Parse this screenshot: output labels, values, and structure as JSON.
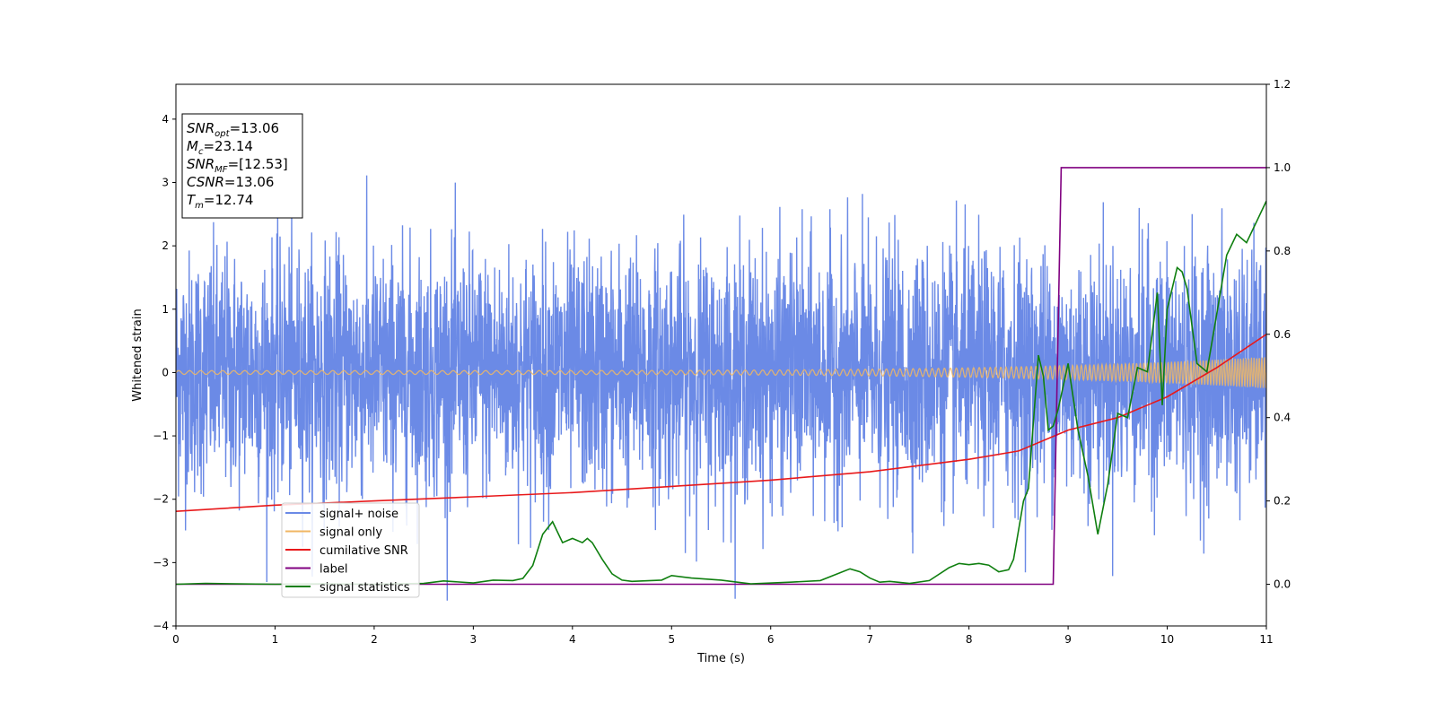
{
  "chart_data": {
    "type": "line",
    "title": "",
    "xlabel": "Time (s)",
    "ylabel": "Whitened strain",
    "y2label": "",
    "xlim": [
      0,
      11
    ],
    "ylim": [
      -4,
      4.55
    ],
    "y2lim": [
      -0.1,
      1.2
    ],
    "xticks": [
      0,
      1,
      2,
      3,
      4,
      5,
      6,
      7,
      8,
      9,
      10,
      11
    ],
    "yticks": [
      -4,
      -3,
      -2,
      -1,
      0,
      1,
      2,
      3,
      4
    ],
    "y2ticks": [
      0.0,
      0.2,
      0.4,
      0.6,
      0.8,
      1.0,
      1.2
    ],
    "xtick_labels": [
      "0",
      "1",
      "2",
      "3",
      "4",
      "5",
      "6",
      "7",
      "8",
      "9",
      "10",
      "11"
    ],
    "ytick_labels": [
      "−4",
      "−3",
      "−2",
      "−1",
      "0",
      "1",
      "2",
      "3",
      "4"
    ],
    "y2tick_labels": [
      "0.0",
      "0.2",
      "0.4",
      "0.6",
      "0.8",
      "1.0",
      "1.2"
    ],
    "grid": false,
    "legend_position": "lower-left",
    "series": [
      {
        "name": "signal+ noise",
        "axis": "left",
        "color": "#6b8ae6",
        "kind": "noise",
        "std": 0.95,
        "range": [
          -3.6,
          4.2
        ]
      },
      {
        "name": "signal only",
        "axis": "left",
        "color": "#f0b764",
        "kind": "chirp",
        "amplitude_start": 0.03,
        "amplitude_end": 0.25
      },
      {
        "name": "cumilative SNR",
        "axis": "right",
        "color": "#e8191b",
        "x": [
          0,
          1,
          2,
          3,
          4,
          5,
          6,
          7,
          8,
          8.5,
          9,
          9.5,
          10,
          10.5,
          11
        ],
        "y": [
          0.175,
          0.19,
          0.2,
          0.21,
          0.22,
          0.235,
          0.25,
          0.27,
          0.3,
          0.32,
          0.37,
          0.4,
          0.45,
          0.52,
          0.6
        ]
      },
      {
        "name": "label",
        "axis": "right",
        "color": "#800080",
        "x": [
          0,
          8.85,
          8.93,
          11
        ],
        "y": [
          0,
          0,
          1,
          1
        ]
      },
      {
        "name": "signal statistics",
        "axis": "right",
        "color": "#0f7f0f",
        "x": [
          0,
          0.3,
          1,
          1.5,
          2,
          2.5,
          2.7,
          3,
          3.2,
          3.4,
          3.5,
          3.6,
          3.7,
          3.8,
          3.9,
          4.0,
          4.1,
          4.15,
          4.2,
          4.3,
          4.4,
          4.5,
          4.6,
          4.9,
          5.0,
          5.2,
          5.5,
          5.8,
          6.2,
          6.5,
          6.8,
          6.9,
          7.0,
          7.1,
          7.2,
          7.4,
          7.6,
          7.8,
          7.9,
          8.0,
          8.1,
          8.2,
          8.3,
          8.4,
          8.45,
          8.5,
          8.55,
          8.6,
          8.7,
          8.75,
          8.8,
          8.85,
          8.9,
          9.0,
          9.1,
          9.2,
          9.3,
          9.4,
          9.5,
          9.6,
          9.7,
          9.8,
          9.9,
          9.95,
          10.0,
          10.1,
          10.15,
          10.2,
          10.3,
          10.4,
          10.5,
          10.6,
          10.7,
          10.8,
          10.9,
          11.0
        ],
        "y": [
          0,
          0.002,
          0,
          0.001,
          0,
          0.002,
          0.008,
          0.003,
          0.01,
          0.009,
          0.014,
          0.045,
          0.12,
          0.15,
          0.1,
          0.11,
          0.1,
          0.11,
          0.1,
          0.06,
          0.025,
          0.01,
          0.007,
          0.01,
          0.021,
          0.015,
          0.01,
          0.001,
          0.005,
          0.009,
          0.037,
          0.03,
          0.015,
          0.005,
          0.007,
          0.002,
          0.009,
          0.04,
          0.05,
          0.047,
          0.05,
          0.046,
          0.03,
          0.035,
          0.06,
          0.13,
          0.2,
          0.23,
          0.55,
          0.5,
          0.37,
          0.38,
          0.42,
          0.53,
          0.37,
          0.26,
          0.12,
          0.24,
          0.41,
          0.4,
          0.52,
          0.51,
          0.7,
          0.43,
          0.66,
          0.76,
          0.75,
          0.71,
          0.53,
          0.51,
          0.65,
          0.79,
          0.84,
          0.82,
          0.87,
          0.92
        ]
      }
    ],
    "annotation": [
      {
        "base": "SNR",
        "sub": "opt",
        "value": "=13.06"
      },
      {
        "base": "M",
        "sub": "c",
        "value": "=23.14"
      },
      {
        "base": "SNR",
        "sub": "MF",
        "value": "=[12.53]"
      },
      {
        "base": "CSNR",
        "sub": "",
        "value": "=13.06"
      },
      {
        "base": "T",
        "sub": "m",
        "value": "=12.74"
      }
    ]
  }
}
